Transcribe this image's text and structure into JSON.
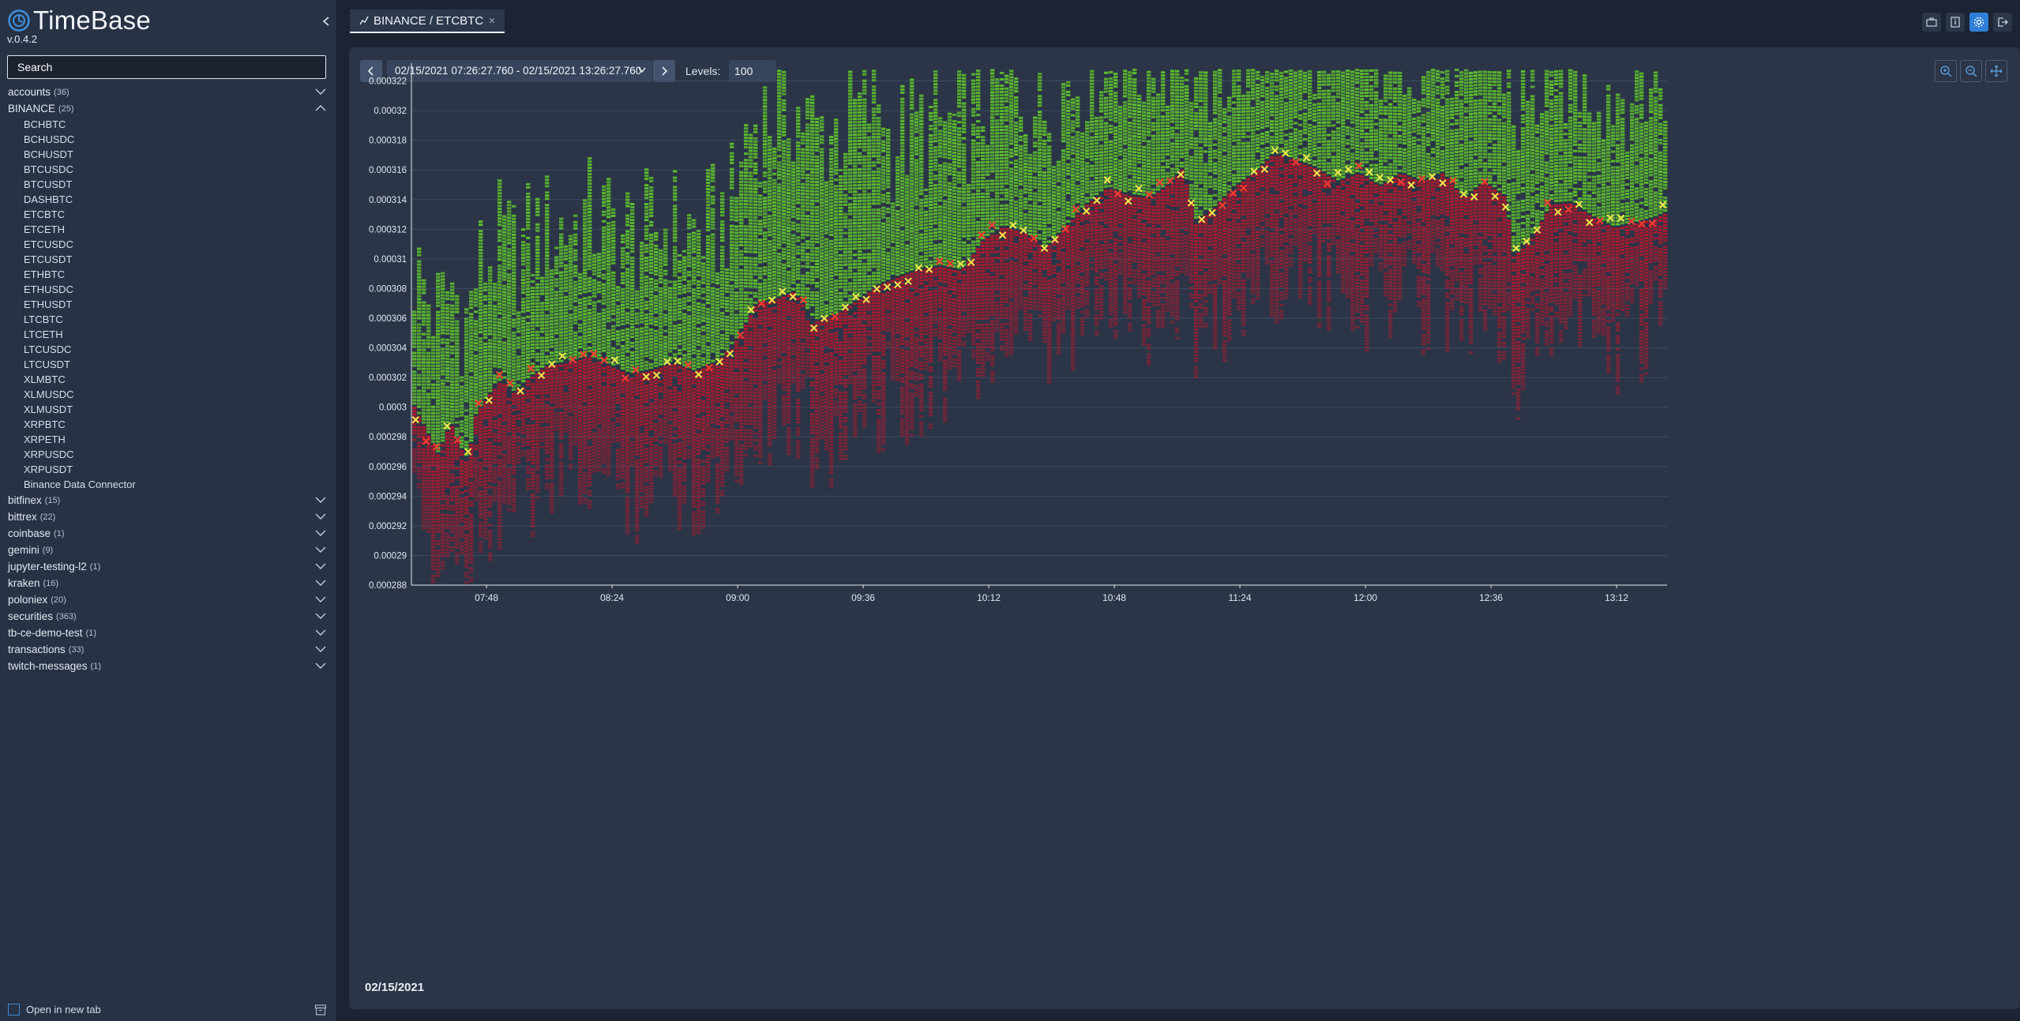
{
  "app": {
    "name": "TimeBase",
    "version": "v.0.4.2"
  },
  "sidebar": {
    "search_placeholder": "Search",
    "groups_top": [
      {
        "name": "accounts",
        "count": "(36)",
        "expanded": false
      }
    ],
    "binance": {
      "name": "BINANCE",
      "count": "(25)",
      "expanded": true,
      "items": [
        "BCHBTC",
        "BCHUSDC",
        "BCHUSDT",
        "BTCUSDC",
        "BTCUSDT",
        "DASHBTC",
        "ETCBTC",
        "ETCETH",
        "ETCUSDC",
        "ETCUSDT",
        "ETHBTC",
        "ETHUSDC",
        "ETHUSDT",
        "LTCBTC",
        "LTCETH",
        "LTCUSDC",
        "LTCUSDT",
        "XLMBTC",
        "XLMUSDC",
        "XLMUSDT",
        "XRPBTC",
        "XRPETH",
        "XRPUSDC",
        "XRPUSDT",
        "Binance Data Connector"
      ]
    },
    "groups_bottom": [
      {
        "name": "bitfinex",
        "count": "(15)"
      },
      {
        "name": "bittrex",
        "count": "(22)"
      },
      {
        "name": "coinbase",
        "count": "(1)"
      },
      {
        "name": "gemini",
        "count": "(9)"
      },
      {
        "name": "jupyter-testing-l2",
        "count": "(1)"
      },
      {
        "name": "kraken",
        "count": "(16)"
      },
      {
        "name": "poloniex",
        "count": "(20)"
      },
      {
        "name": "securities",
        "count": "(363)"
      },
      {
        "name": "tb-ce-demo-test",
        "count": "(1)"
      },
      {
        "name": "transactions",
        "count": "(33)"
      },
      {
        "name": "twitch-messages",
        "count": "(1)"
      }
    ],
    "open_new_tab_label": "Open in new tab"
  },
  "tab": {
    "label": "BINANCE / ETCBTC"
  },
  "toolbar": {
    "range_text": "02/15/2021 07:26:27.760 - 02/15/2021 13:26:27.760",
    "levels_label": "Levels:",
    "levels_value": "100"
  },
  "footer_date": "02/15/2021",
  "colors": {
    "ask": "#5dbf2c",
    "bid": "#b3182c",
    "sell_trade": "#ff3b30",
    "buy_trade": "#f2e84b",
    "accent": "#2f7fd8"
  },
  "chart_data": {
    "type": "heatmap",
    "x_ticks": [
      "07:48",
      "08:24",
      "09:00",
      "09:36",
      "10:12",
      "10:48",
      "11:24",
      "12:00",
      "12:36",
      "13:12"
    ],
    "y_ticks": [
      "0.000288",
      "0.00029",
      "0.000292",
      "0.000294",
      "0.000296",
      "0.000298",
      "0.0003",
      "0.000302",
      "0.000304",
      "0.000306",
      "0.000308",
      "0.00031",
      "0.000312",
      "0.000314",
      "0.000316",
      "0.000318",
      "0.00032",
      "0.000322"
    ],
    "ylim": [
      0.000288,
      0.0003232
    ],
    "x_range_hours": [
      7.4411,
      13.4411
    ],
    "mid_price": [
      [
        7.44,
        0.0003002
      ],
      [
        7.5,
        0.0002985
      ],
      [
        7.56,
        0.0002968
      ],
      [
        7.62,
        0.000299
      ],
      [
        7.66,
        0.0002975
      ],
      [
        7.7,
        0.0002962
      ],
      [
        7.74,
        0.0002995
      ],
      [
        7.8,
        0.0003008
      ],
      [
        7.86,
        0.0003018
      ],
      [
        7.92,
        0.000301
      ],
      [
        8.0,
        0.000302
      ],
      [
        8.08,
        0.0003028
      ],
      [
        8.18,
        0.000303
      ],
      [
        8.28,
        0.0003034
      ],
      [
        8.38,
        0.0003028
      ],
      [
        8.48,
        0.0003022
      ],
      [
        8.58,
        0.0003025
      ],
      [
        8.68,
        0.000303
      ],
      [
        8.78,
        0.0003024
      ],
      [
        8.9,
        0.0003031
      ],
      [
        9.0,
        0.0003048
      ],
      [
        9.08,
        0.000307
      ],
      [
        9.16,
        0.0003072
      ],
      [
        9.26,
        0.0003078
      ],
      [
        9.36,
        0.0003058
      ],
      [
        9.46,
        0.0003062
      ],
      [
        9.56,
        0.0003072
      ],
      [
        9.66,
        0.0003082
      ],
      [
        9.76,
        0.0003088
      ],
      [
        9.86,
        0.0003093
      ],
      [
        9.96,
        0.0003095
      ],
      [
        10.06,
        0.0003092
      ],
      [
        10.16,
        0.0003112
      ],
      [
        10.26,
        0.0003122
      ],
      [
        10.36,
        0.0003118
      ],
      [
        10.46,
        0.0003107
      ],
      [
        10.56,
        0.0003122
      ],
      [
        10.66,
        0.0003137
      ],
      [
        10.76,
        0.0003148
      ],
      [
        10.86,
        0.0003143
      ],
      [
        10.96,
        0.0003141
      ],
      [
        11.06,
        0.0003151
      ],
      [
        11.12,
        0.0003162
      ],
      [
        11.18,
        0.0003126
      ],
      [
        11.26,
        0.0003133
      ],
      [
        11.36,
        0.0003148
      ],
      [
        11.46,
        0.0003158
      ],
      [
        11.56,
        0.0003172
      ],
      [
        11.66,
        0.0003166
      ],
      [
        11.76,
        0.0003161
      ],
      [
        11.86,
        0.0003152
      ],
      [
        11.96,
        0.0003158
      ],
      [
        12.06,
        0.0003149
      ],
      [
        12.16,
        0.0003158
      ],
      [
        12.26,
        0.0003152
      ],
      [
        12.36,
        0.0003158
      ],
      [
        12.46,
        0.0003141
      ],
      [
        12.56,
        0.0003152
      ],
      [
        12.66,
        0.0003142
      ],
      [
        12.7,
        0.0003102
      ],
      [
        12.78,
        0.0003112
      ],
      [
        12.88,
        0.0003137
      ],
      [
        12.98,
        0.0003138
      ],
      [
        13.08,
        0.0003128
      ],
      [
        13.18,
        0.0003121
      ],
      [
        13.28,
        0.0003124
      ],
      [
        13.38,
        0.0003128
      ],
      [
        13.44,
        0.0003132
      ]
    ]
  }
}
